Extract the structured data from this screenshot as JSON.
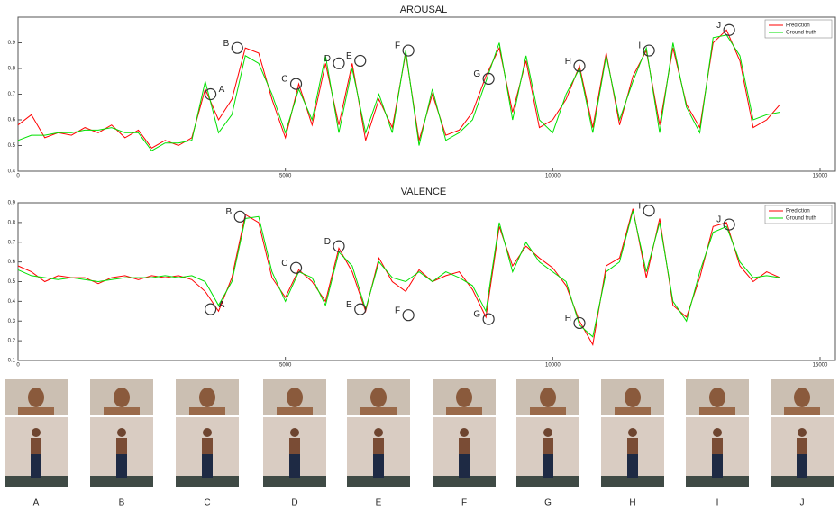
{
  "chart_data": [
    {
      "type": "line",
      "title": "AROUSAL",
      "x": [
        0,
        250,
        500,
        750,
        1000,
        1250,
        1500,
        1750,
        2000,
        2250,
        2500,
        2750,
        3000,
        3250,
        3500,
        3750,
        4000,
        4250,
        4500,
        4750,
        5000,
        5250,
        5500,
        5750,
        6000,
        6250,
        6500,
        6750,
        7000,
        7250,
        7500,
        7750,
        8000,
        8250,
        8500,
        8750,
        9000,
        9250,
        9500,
        9750,
        10000,
        10250,
        10500,
        10750,
        11000,
        11250,
        11500,
        11750,
        12000,
        12250,
        12500,
        12750,
        13000,
        13250,
        13500,
        13750,
        14000,
        14250
      ],
      "series": [
        {
          "name": "Prediction",
          "color": "#ff0000",
          "values": [
            0.58,
            0.62,
            0.53,
            0.55,
            0.54,
            0.57,
            0.55,
            0.58,
            0.53,
            0.56,
            0.49,
            0.52,
            0.5,
            0.53,
            0.72,
            0.6,
            0.68,
            0.88,
            0.86,
            0.68,
            0.53,
            0.74,
            0.58,
            0.82,
            0.58,
            0.82,
            0.52,
            0.68,
            0.57,
            0.86,
            0.52,
            0.7,
            0.54,
            0.56,
            0.63,
            0.77,
            0.88,
            0.63,
            0.83,
            0.57,
            0.6,
            0.68,
            0.81,
            0.57,
            0.86,
            0.58,
            0.77,
            0.87,
            0.58,
            0.88,
            0.66,
            0.57,
            0.9,
            0.95,
            0.83,
            0.57,
            0.6,
            0.66
          ]
        },
        {
          "name": "Ground truth",
          "color": "#00e000",
          "values": [
            0.52,
            0.54,
            0.54,
            0.55,
            0.55,
            0.56,
            0.56,
            0.57,
            0.55,
            0.55,
            0.48,
            0.51,
            0.51,
            0.52,
            0.75,
            0.55,
            0.62,
            0.85,
            0.82,
            0.7,
            0.55,
            0.72,
            0.6,
            0.85,
            0.55,
            0.8,
            0.55,
            0.7,
            0.55,
            0.87,
            0.5,
            0.72,
            0.52,
            0.55,
            0.6,
            0.75,
            0.9,
            0.6,
            0.85,
            0.6,
            0.55,
            0.7,
            0.8,
            0.55,
            0.85,
            0.6,
            0.75,
            0.88,
            0.55,
            0.9,
            0.65,
            0.55,
            0.92,
            0.93,
            0.85,
            0.6,
            0.62,
            0.63
          ]
        }
      ],
      "xlim": [
        0,
        15000
      ],
      "xticks": [
        0,
        5000,
        10000,
        15000
      ],
      "ylim": [
        0.4,
        1.0
      ],
      "yticks": [
        0.4,
        0.5,
        0.6,
        0.7,
        0.8,
        0.9
      ],
      "legend": "upper right",
      "annotations": [
        {
          "label": "A",
          "x": 3600,
          "y": 0.7
        },
        {
          "label": "B",
          "x": 4100,
          "y": 0.88
        },
        {
          "label": "C",
          "x": 5200,
          "y": 0.74
        },
        {
          "label": "D",
          "x": 6000,
          "y": 0.82
        },
        {
          "label": "E",
          "x": 6400,
          "y": 0.83
        },
        {
          "label": "F",
          "x": 7300,
          "y": 0.87
        },
        {
          "label": "G",
          "x": 8800,
          "y": 0.76
        },
        {
          "label": "H",
          "x": 10500,
          "y": 0.81
        },
        {
          "label": "I",
          "x": 11800,
          "y": 0.87
        },
        {
          "label": "J",
          "x": 13300,
          "y": 0.95
        }
      ]
    },
    {
      "type": "line",
      "title": "VALENCE",
      "x": [
        0,
        250,
        500,
        750,
        1000,
        1250,
        1500,
        1750,
        2000,
        2250,
        2500,
        2750,
        3000,
        3250,
        3500,
        3750,
        4000,
        4250,
        4500,
        4750,
        5000,
        5250,
        5500,
        5750,
        6000,
        6250,
        6500,
        6750,
        7000,
        7250,
        7500,
        7750,
        8000,
        8250,
        8500,
        8750,
        9000,
        9250,
        9500,
        9750,
        10000,
        10250,
        10500,
        10750,
        11000,
        11250,
        11500,
        11750,
        12000,
        12250,
        12500,
        12750,
        13000,
        13250,
        13500,
        13750,
        14000,
        14250
      ],
      "series": [
        {
          "name": "Prediction",
          "color": "#ff0000",
          "values": [
            0.58,
            0.55,
            0.5,
            0.53,
            0.52,
            0.52,
            0.49,
            0.52,
            0.53,
            0.51,
            0.53,
            0.52,
            0.53,
            0.51,
            0.45,
            0.35,
            0.52,
            0.84,
            0.8,
            0.52,
            0.42,
            0.56,
            0.5,
            0.4,
            0.67,
            0.55,
            0.35,
            0.62,
            0.5,
            0.45,
            0.56,
            0.5,
            0.53,
            0.55,
            0.46,
            0.32,
            0.78,
            0.58,
            0.68,
            0.62,
            0.57,
            0.48,
            0.3,
            0.18,
            0.58,
            0.62,
            0.87,
            0.52,
            0.82,
            0.38,
            0.32,
            0.52,
            0.78,
            0.8,
            0.58,
            0.5,
            0.55,
            0.52
          ]
        },
        {
          "name": "Ground truth",
          "color": "#00e000",
          "values": [
            0.56,
            0.53,
            0.52,
            0.51,
            0.52,
            0.51,
            0.5,
            0.51,
            0.52,
            0.52,
            0.52,
            0.53,
            0.52,
            0.53,
            0.5,
            0.38,
            0.5,
            0.82,
            0.83,
            0.55,
            0.4,
            0.55,
            0.52,
            0.38,
            0.65,
            0.58,
            0.36,
            0.6,
            0.52,
            0.5,
            0.55,
            0.5,
            0.55,
            0.52,
            0.48,
            0.35,
            0.8,
            0.55,
            0.7,
            0.6,
            0.55,
            0.5,
            0.28,
            0.22,
            0.55,
            0.6,
            0.86,
            0.55,
            0.8,
            0.4,
            0.3,
            0.55,
            0.75,
            0.78,
            0.6,
            0.52,
            0.53,
            0.52
          ]
        }
      ],
      "xlim": [
        0,
        15000
      ],
      "xticks": [
        0,
        5000,
        10000,
        15000
      ],
      "ylim": [
        0.1,
        0.9
      ],
      "yticks": [
        0.1,
        0.2,
        0.3,
        0.4,
        0.5,
        0.6,
        0.7,
        0.8,
        0.9
      ],
      "legend": "upper right",
      "annotations": [
        {
          "label": "A",
          "x": 3600,
          "y": 0.36
        },
        {
          "label": "B",
          "x": 4150,
          "y": 0.83
        },
        {
          "label": "C",
          "x": 5200,
          "y": 0.57
        },
        {
          "label": "D",
          "x": 6000,
          "y": 0.68
        },
        {
          "label": "E",
          "x": 6400,
          "y": 0.36
        },
        {
          "label": "F",
          "x": 7300,
          "y": 0.33
        },
        {
          "label": "G",
          "x": 8800,
          "y": 0.31
        },
        {
          "label": "H",
          "x": 10500,
          "y": 0.29
        },
        {
          "label": "I",
          "x": 11800,
          "y": 0.86
        },
        {
          "label": "J",
          "x": 13300,
          "y": 0.79
        }
      ]
    }
  ],
  "photo_labels": [
    "A",
    "B",
    "C",
    "D",
    "E",
    "F",
    "G",
    "H",
    "I",
    "J"
  ]
}
